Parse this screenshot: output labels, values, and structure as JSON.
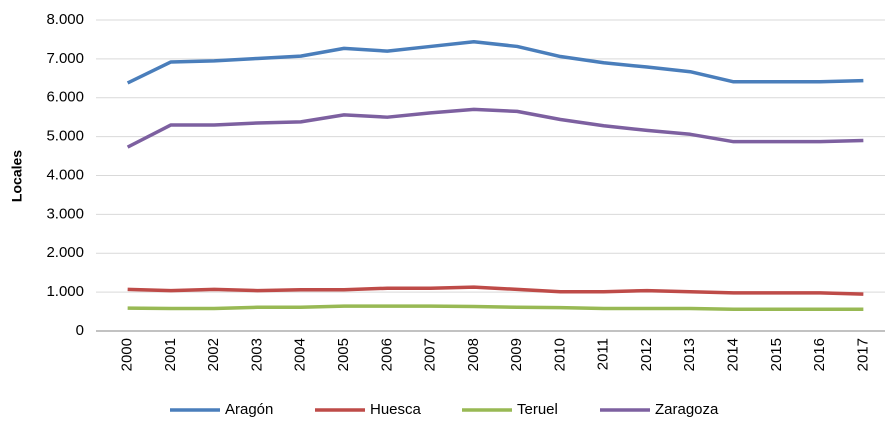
{
  "chart_data": {
    "type": "line",
    "y_label": "Locales",
    "categories": [
      "2000",
      "2001",
      "2002",
      "2003",
      "2004",
      "2005",
      "2006",
      "2007",
      "2008",
      "2009",
      "2010",
      "2011",
      "2012",
      "2013",
      "2014",
      "2015",
      "2016",
      "2017"
    ],
    "series": [
      {
        "name": "Aragón",
        "color": "#4a7ebb",
        "values": [
          6380,
          6920,
          6950,
          7010,
          7070,
          7270,
          7200,
          7320,
          7440,
          7320,
          7060,
          6900,
          6790,
          6670,
          6410,
          6410,
          6410,
          6440
        ]
      },
      {
        "name": "Huesca",
        "color": "#be4b48",
        "values": [
          1070,
          1040,
          1070,
          1040,
          1060,
          1060,
          1100,
          1100,
          1130,
          1070,
          1010,
          1010,
          1040,
          1010,
          980,
          980,
          980,
          950
        ]
      },
      {
        "name": "Teruel",
        "color": "#98b954",
        "values": [
          590,
          580,
          580,
          610,
          610,
          640,
          640,
          640,
          630,
          610,
          600,
          580,
          580,
          580,
          560,
          560,
          560,
          560
        ]
      },
      {
        "name": "Zaragoza",
        "color": "#7d60a0",
        "values": [
          4730,
          5300,
          5300,
          5350,
          5380,
          5560,
          5500,
          5610,
          5700,
          5650,
          5440,
          5280,
          5160,
          5060,
          4870,
          4870,
          4870,
          4900
        ]
      }
    ],
    "ylim": [
      0,
      8000
    ],
    "yticks": [
      0,
      {
        "value": 1000,
        "label": "1.000"
      },
      {
        "value": 2000,
        "label": "2.000"
      },
      {
        "value": 3000,
        "label": "3.000"
      },
      {
        "value": 4000,
        "label": "4.000"
      },
      {
        "value": 5000,
        "label": "5.000"
      },
      {
        "value": 6000,
        "label": "6.000"
      },
      {
        "value": 7000,
        "label": "7.000"
      },
      {
        "value": 8000,
        "label": "8.000"
      }
    ],
    "grid": true,
    "legend": "bottom"
  }
}
